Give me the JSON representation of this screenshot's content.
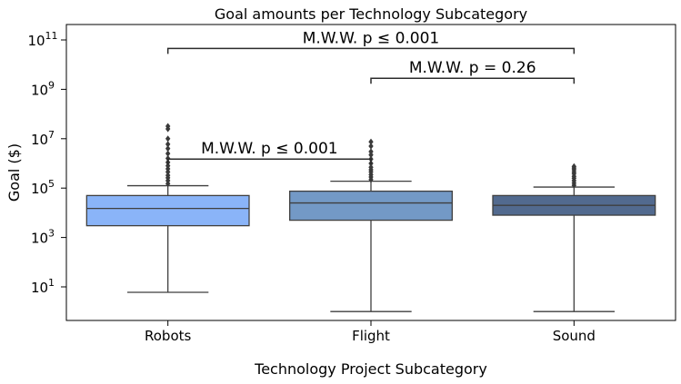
{
  "chart_data": {
    "type": "box",
    "title": "Goal amounts per Technology Subcategory",
    "xlabel": "Technology Project Subcategory",
    "ylabel": "Goal ($)",
    "yscale": "log",
    "ylim": [
      0.3,
      400000000000
    ],
    "yticks": [
      {
        "value": 10,
        "label": "10",
        "exp": "1"
      },
      {
        "value": 1000,
        "label": "10",
        "exp": "3"
      },
      {
        "value": 100000,
        "label": "10",
        "exp": "5"
      },
      {
        "value": 10000000,
        "label": "10",
        "exp": "7"
      },
      {
        "value": 1000000000,
        "label": "10",
        "exp": "9"
      },
      {
        "value": 100000000000,
        "label": "10",
        "exp": "11"
      }
    ],
    "categories": [
      "Robots",
      "Flight",
      "Sound"
    ],
    "boxes": [
      {
        "category": "Robots",
        "color": "#8ab4f8",
        "whisker_low": 6,
        "q1": 3000,
        "median": 15000,
        "q3": 50000,
        "whisker_high": 125000,
        "outliers": [
          150000,
          200000,
          260000,
          330000,
          450000,
          600000,
          800000,
          1100000,
          1600000,
          2500000,
          4000000,
          6000000,
          10000000,
          25000000,
          32000000
        ]
      },
      {
        "category": "Flight",
        "color": "#7399c6",
        "whisker_low": 1,
        "q1": 5000,
        "median": 25000,
        "q3": 75000,
        "whisker_high": 190000,
        "outliers": [
          220000,
          280000,
          350000,
          450000,
          550000,
          700000,
          1000000,
          1500000,
          2200000,
          3000000,
          5000000,
          7500000
        ]
      },
      {
        "category": "Sound",
        "color": "#526a8f",
        "whisker_low": 1,
        "q1": 8000,
        "median": 20000,
        "q3": 50000,
        "whisker_high": 110000,
        "outliers": [
          130000,
          160000,
          200000,
          250000,
          300000,
          380000,
          450000,
          550000,
          650000,
          750000
        ]
      }
    ],
    "annotations": [
      {
        "from": "Robots",
        "to": "Flight",
        "text": "M.W.W. p ≤ 0.001",
        "y": 1500000
      },
      {
        "from": "Flight",
        "to": "Sound",
        "text": "M.W.W. p = 0.26",
        "y": 2800000000
      },
      {
        "from": "Robots",
        "to": "Sound",
        "text": "M.W.W. p ≤ 0.001",
        "y": 45000000000
      }
    ],
    "grid": false
  }
}
